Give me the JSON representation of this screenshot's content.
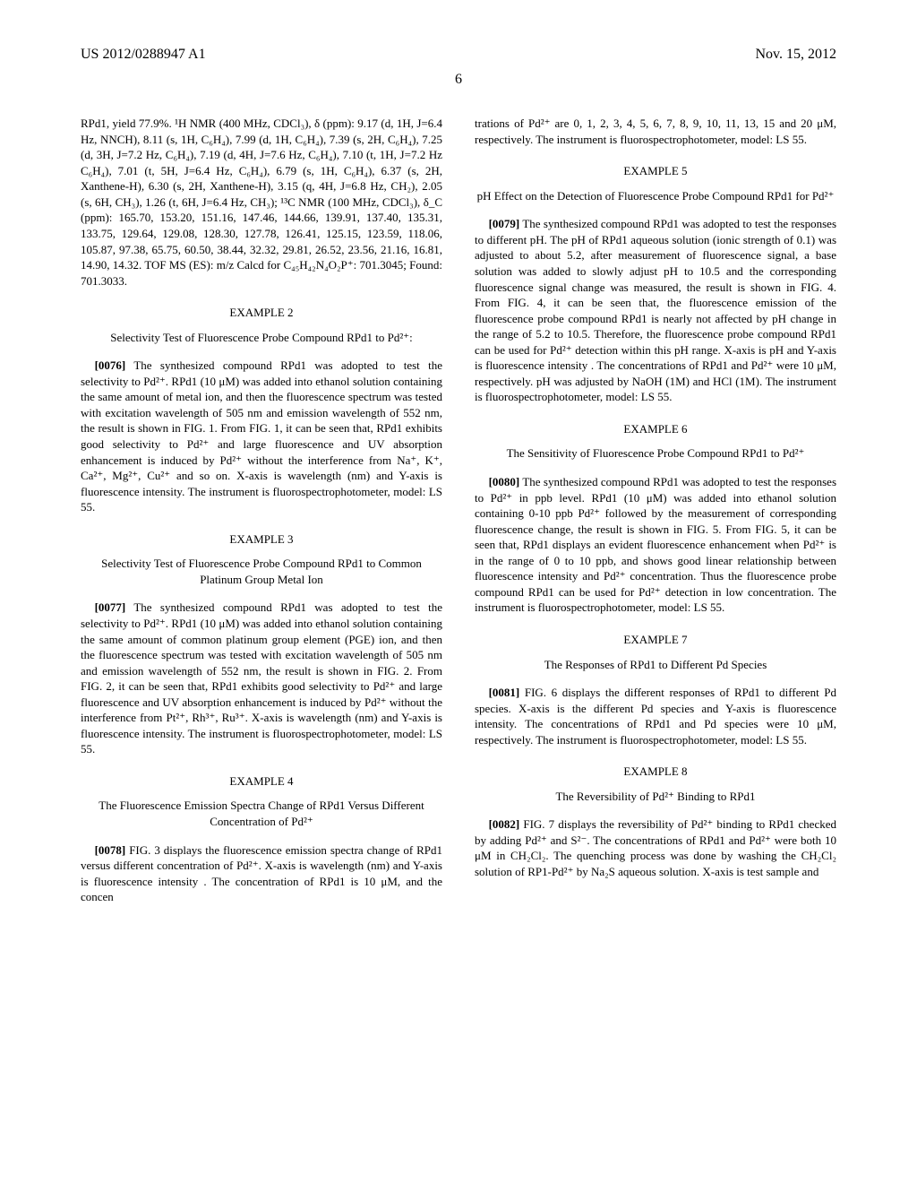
{
  "header": {
    "pub_number": "US 2012/0288947 A1",
    "date": "Nov. 15, 2012",
    "page": "6"
  },
  "col1": {
    "nmr_text": "RPd1, yield 77.9%. ¹H NMR (400 MHz, CDCl₃), δ (ppm): 9.17 (d, 1H, J=6.4 Hz, NNCH), 8.11 (s, 1H, C₆H₄), 7.99 (d, 1H, C₆H₄), 7.39 (s, 2H, C₆H₄), 7.25 (d, 3H, J=7.2 Hz, C₆H₄), 7.19 (d, 4H, J=7.6 Hz, C₆H₄), 7.10 (t, 1H, J=7.2 Hz C₆H₄), 7.01 (t, 5H, J=6.4 Hz, C₆H₄), 6.79 (s, 1H, C₆H₄), 6.37 (s, 2H, Xanthene-H), 6.30 (s, 2H, Xanthene-H), 3.15 (q, 4H, J=6.8 Hz, CH₂), 2.05 (s, 6H, CH₃), 1.26 (t, 6H, J=6.4 Hz, CH₃); ¹³C NMR (100 MHz, CDCl₃), δ_C (ppm): 165.70, 153.20, 151.16, 147.46, 144.66, 139.91, 137.40, 135.31, 133.75, 129.64, 129.08, 128.30, 127.78, 126.41, 125.15, 123.59, 118.06, 105.87, 97.38, 65.75, 60.50, 38.44, 32.32, 29.81, 26.52, 23.56, 21.16, 16.81, 14.90, 14.32. TOF MS (ES): m/z Calcd for C₄₅H₄₂N₄O₂P⁺: 701.3045; Found: 701.3033.",
    "ex2_title": "EXAMPLE 2",
    "ex2_subtitle": "Selectivity Test of Fluorescence Probe Compound RPd1 to Pd²⁺:",
    "ex2_num": "[0076]",
    "ex2_text": " The synthesized compound RPd1 was adopted to test the selectivity to Pd²⁺. RPd1 (10 μM) was added into ethanol solution containing the same amount of metal ion, and then the fluorescence spectrum was tested with excitation wavelength of 505 nm and emission wavelength of 552 nm, the result is shown in FIG. 1. From FIG. 1, it can be seen that, RPd1 exhibits good selectivity to Pd²⁺ and large fluorescence and UV absorption enhancement is induced by Pd²⁺ without the interference from Na⁺, K⁺, Ca²⁺, Mg²⁺, Cu²⁺ and so on. X-axis is wavelength (nm) and Y-axis is fluorescence intensity. The instrument is fluorospectrophotometer, model: LS 55.",
    "ex3_title": "EXAMPLE 3",
    "ex3_subtitle": "Selectivity Test of Fluorescence Probe Compound RPd1 to Common Platinum Group Metal Ion",
    "ex3_num": "[0077]",
    "ex3_text": " The synthesized compound RPd1 was adopted to test the selectivity to Pd²⁺. RPd1 (10 μM) was added into ethanol solution containing the same amount of common platinum group element (PGE) ion, and then the fluorescence spectrum was tested with excitation wavelength of 505 nm and emission wavelength of 552 nm, the result is shown in FIG. 2. From FIG. 2, it can be seen that, RPd1 exhibits good selectivity to Pd²⁺ and large fluorescence and UV absorption enhancement is induced by Pd²⁺ without the interference from Pt²⁺, Rh³⁺, Ru³⁺. X-axis is wavelength (nm) and Y-axis is fluorescence intensity. The instrument is fluorospectrophotometer, model: LS 55.",
    "ex4_title": "EXAMPLE 4",
    "ex4_subtitle": "The Fluorescence Emission Spectra Change of RPd1 Versus Different Concentration of Pd²⁺",
    "ex4_num": "[0078]",
    "ex4_text": " FIG. 3 displays the fluorescence emission spectra change of RPd1 versus different concentration of Pd²⁺. X-axis is wavelength (nm) and Y-axis is fluorescence intensity . The concentration of RPd1 is 10 μM, and the concen"
  },
  "col2": {
    "cont_text": "trations of Pd²⁺ are 0, 1, 2, 3, 4, 5, 6, 7, 8, 9, 10, 11, 13, 15 and 20 μM, respectively. The instrument is fluorospectrophotometer, model: LS 55.",
    "ex5_title": "EXAMPLE 5",
    "ex5_subtitle": "pH Effect on the Detection of Fluorescence Probe Compound RPd1 for Pd²⁺",
    "ex5_num": "[0079]",
    "ex5_text": " The synthesized compound RPd1 was adopted to test the responses to different pH. The pH of RPd1 aqueous solution (ionic strength of 0.1) was adjusted to about 5.2, after measurement of fluorescence signal, a base solution was added to slowly adjust pH to 10.5 and the corresponding fluorescence signal change was measured, the result is shown in FIG. 4. From FIG. 4, it can be seen that, the fluorescence emission of the fluorescence probe compound RPd1 is nearly not affected by pH change in the range of 5.2 to 10.5. Therefore, the fluorescence probe compound RPd1 can be used for Pd²⁺ detection within this pH range. X-axis is pH and Y-axis is fluorescence intensity . The concentrations of RPd1 and Pd²⁺ were 10 μM, respectively. pH was adjusted by NaOH (1M) and HCl (1M). The instrument is fluorospectrophotometer, model: LS 55.",
    "ex6_title": "EXAMPLE 6",
    "ex6_subtitle": "The Sensitivity of Fluorescence Probe Compound RPd1 to Pd²⁺",
    "ex6_num": "[0080]",
    "ex6_text": " The synthesized compound RPd1 was adopted to test the responses to Pd²⁺ in ppb level. RPd1 (10 μM) was added into ethanol solution containing 0-10 ppb Pd²⁺ followed by the measurement of corresponding fluorescence change, the result is shown in FIG. 5. From FIG. 5, it can be seen that, RPd1 displays an evident fluorescence enhancement when Pd²⁺ is in the range of 0 to 10 ppb, and shows good linear relationship between fluorescence intensity and Pd²⁺ concentration. Thus the fluorescence probe compound RPd1 can be used for Pd²⁺ detection in low concentration. The instrument is fluorospectrophotometer, model: LS 55.",
    "ex7_title": "EXAMPLE 7",
    "ex7_subtitle": "The Responses of RPd1 to Different Pd Species",
    "ex7_num": "[0081]",
    "ex7_text": " FIG. 6 displays the different responses of RPd1 to different Pd species. X-axis is the different Pd species and Y-axis is fluorescence intensity. The concentrations of RPd1 and Pd species were 10 μM, respectively. The instrument is fluorospectrophotometer, model: LS 55.",
    "ex8_title": "EXAMPLE 8",
    "ex8_subtitle": "The Reversibility of Pd²⁺ Binding to RPd1",
    "ex8_num": "[0082]",
    "ex8_text": " FIG. 7 displays the reversibility of Pd²⁺ binding to RPd1 checked by adding Pd²⁺ and S²⁻. The concentrations of RPd1 and Pd²⁺ were both 10 μM in CH₂Cl₂. The quenching process was done by washing the CH₂Cl₂ solution of RP1-Pd²⁺ by Na₂S aqueous solution. X-axis is test sample and"
  }
}
